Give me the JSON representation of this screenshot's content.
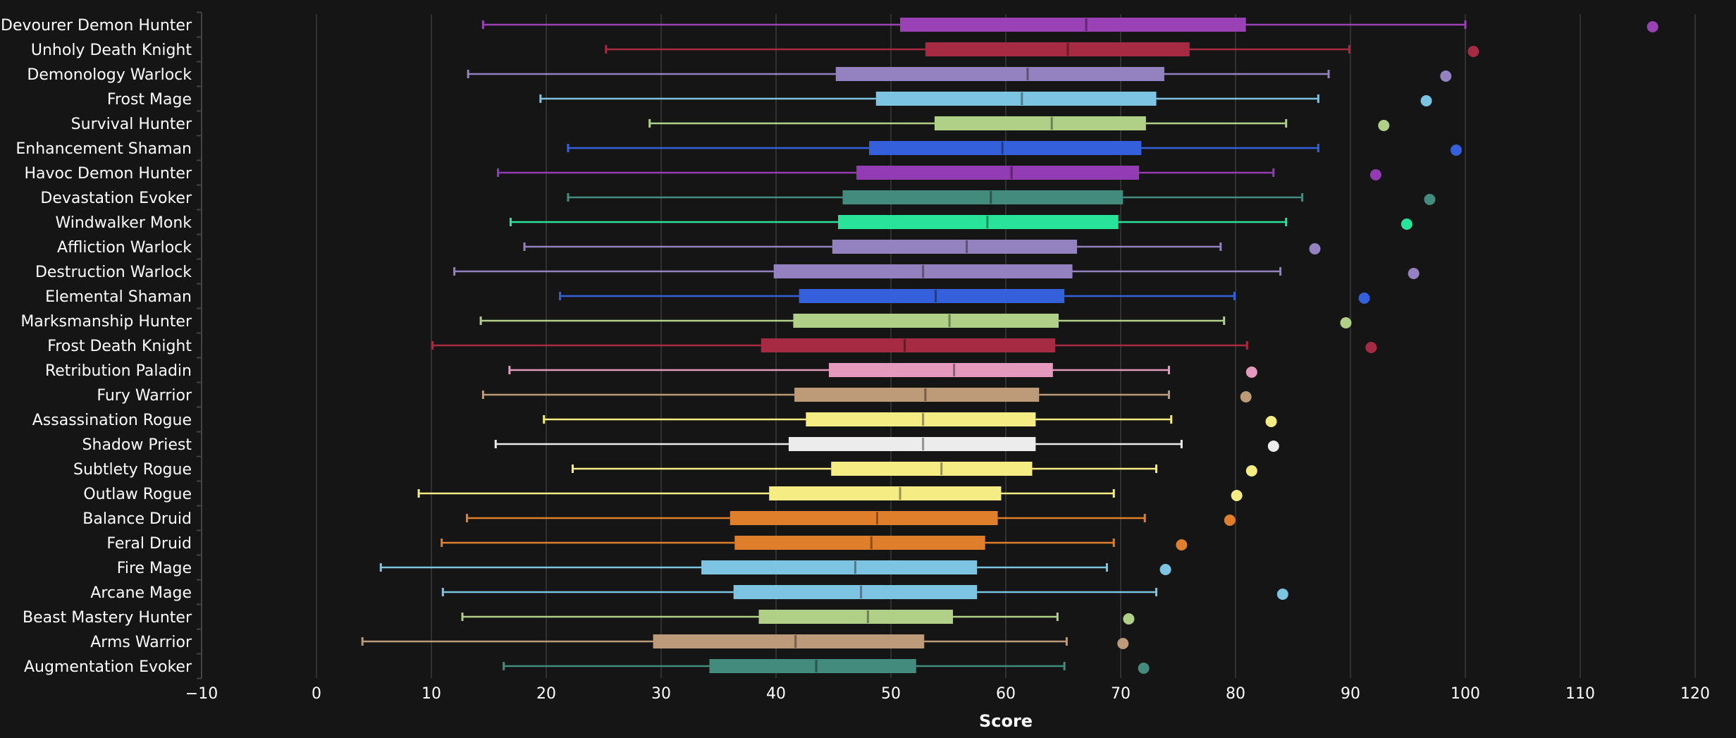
{
  "chart_data": {
    "type": "boxplot",
    "orientation": "horizontal",
    "title": "",
    "xlabel": "Score",
    "ylabel": "",
    "xlim": [
      -10,
      120
    ],
    "xticks": [
      -10,
      0,
      10,
      20,
      30,
      40,
      50,
      60,
      70,
      80,
      90,
      100,
      110,
      120
    ],
    "xtick_labels": [
      "−10",
      "0",
      "10",
      "20",
      "30",
      "40",
      "50",
      "60",
      "70",
      "80",
      "90",
      "100",
      "110",
      "120"
    ],
    "grid": "vertical",
    "legend": "none",
    "background": "#151515",
    "series": [
      {
        "name": "Devourer Demon Hunter",
        "color": "#9b41b6",
        "whisker_low": 14.5,
        "q1": 50.8,
        "median": 67.0,
        "q3": 80.9,
        "whisker_high": 100.0,
        "outlier": 116.3
      },
      {
        "name": "Unholy Death Knight",
        "color": "#a62b42",
        "whisker_low": 25.2,
        "q1": 53.0,
        "median": 65.4,
        "q3": 76.0,
        "whisker_high": 89.9,
        "outlier": 100.7
      },
      {
        "name": "Demonology Warlock",
        "color": "#9482c0",
        "whisker_low": 13.2,
        "q1": 45.2,
        "median": 61.9,
        "q3": 73.8,
        "whisker_high": 88.1,
        "outlier": 98.3
      },
      {
        "name": "Frost Mage",
        "color": "#7cc4e2",
        "whisker_low": 19.5,
        "q1": 48.7,
        "median": 61.4,
        "q3": 73.1,
        "whisker_high": 87.2,
        "outlier": 96.6
      },
      {
        "name": "Survival Hunter",
        "color": "#afd086",
        "whisker_low": 29.0,
        "q1": 53.8,
        "median": 64.0,
        "q3": 72.2,
        "whisker_high": 84.4,
        "outlier": 92.9
      },
      {
        "name": "Enhancement Shaman",
        "color": "#3460dc",
        "whisker_low": 21.9,
        "q1": 48.1,
        "median": 59.7,
        "q3": 71.8,
        "whisker_high": 87.2,
        "outlier": 99.2
      },
      {
        "name": "Havoc Demon Hunter",
        "color": "#933bb2",
        "whisker_low": 15.8,
        "q1": 47.0,
        "median": 60.5,
        "q3": 71.6,
        "whisker_high": 83.3,
        "outlier": 92.2
      },
      {
        "name": "Devastation Evoker",
        "color": "#438b7c",
        "whisker_low": 21.9,
        "q1": 45.8,
        "median": 58.7,
        "q3": 70.2,
        "whisker_high": 85.8,
        "outlier": 96.9
      },
      {
        "name": "Windwalker Monk",
        "color": "#2ae39a",
        "whisker_low": 16.9,
        "q1": 45.4,
        "median": 58.4,
        "q3": 69.8,
        "whisker_high": 84.4,
        "outlier": 94.9
      },
      {
        "name": "Affliction Warlock",
        "color": "#9482c0",
        "whisker_low": 18.1,
        "q1": 44.9,
        "median": 56.6,
        "q3": 66.2,
        "whisker_high": 78.7,
        "outlier": 86.9
      },
      {
        "name": "Destruction Warlock",
        "color": "#9482c0",
        "whisker_low": 12.0,
        "q1": 39.8,
        "median": 52.8,
        "q3": 65.8,
        "whisker_high": 83.9,
        "outlier": 95.5
      },
      {
        "name": "Elemental Shaman",
        "color": "#3460dc",
        "whisker_low": 21.2,
        "q1": 42.0,
        "median": 53.9,
        "q3": 65.1,
        "whisker_high": 79.9,
        "outlier": 91.2
      },
      {
        "name": "Marksmanship Hunter",
        "color": "#afd086",
        "whisker_low": 14.3,
        "q1": 41.5,
        "median": 55.1,
        "q3": 64.6,
        "whisker_high": 79.0,
        "outlier": 89.6
      },
      {
        "name": "Frost Death Knight",
        "color": "#a62b42",
        "whisker_low": 10.1,
        "q1": 38.7,
        "median": 51.2,
        "q3": 64.3,
        "whisker_high": 81.0,
        "outlier": 91.8
      },
      {
        "name": "Retribution Paladin",
        "color": "#e59abd",
        "whisker_low": 16.8,
        "q1": 44.6,
        "median": 55.5,
        "q3": 64.1,
        "whisker_high": 74.2,
        "outlier": 81.4
      },
      {
        "name": "Fury Warrior",
        "color": "#bd9a78",
        "whisker_low": 14.5,
        "q1": 41.6,
        "median": 53.0,
        "q3": 62.9,
        "whisker_high": 74.2,
        "outlier": 80.9
      },
      {
        "name": "Assassination Rogue",
        "color": "#f5ec84",
        "whisker_low": 19.8,
        "q1": 42.6,
        "median": 52.8,
        "q3": 62.6,
        "whisker_high": 74.4,
        "outlier": 83.1
      },
      {
        "name": "Shadow Priest",
        "color": "#ececec",
        "whisker_low": 15.6,
        "q1": 41.1,
        "median": 52.8,
        "q3": 62.6,
        "whisker_high": 75.3,
        "outlier": 83.3
      },
      {
        "name": "Subtlety Rogue",
        "color": "#f5ec84",
        "whisker_low": 22.3,
        "q1": 44.8,
        "median": 54.4,
        "q3": 62.3,
        "whisker_high": 73.1,
        "outlier": 81.4
      },
      {
        "name": "Outlaw Rogue",
        "color": "#f5ec84",
        "whisker_low": 8.9,
        "q1": 39.4,
        "median": 50.8,
        "q3": 59.6,
        "whisker_high": 69.4,
        "outlier": 80.1
      },
      {
        "name": "Balance Druid",
        "color": "#e07f2b",
        "whisker_low": 13.1,
        "q1": 36.0,
        "median": 48.8,
        "q3": 59.3,
        "whisker_high": 72.1,
        "outlier": 79.5
      },
      {
        "name": "Feral Druid",
        "color": "#e07f2b",
        "whisker_low": 10.9,
        "q1": 36.4,
        "median": 48.3,
        "q3": 58.2,
        "whisker_high": 69.4,
        "outlier": 75.3
      },
      {
        "name": "Fire Mage",
        "color": "#7cc4e2",
        "whisker_low": 5.6,
        "q1": 33.5,
        "median": 46.9,
        "q3": 57.5,
        "whisker_high": 68.8,
        "outlier": 73.9
      },
      {
        "name": "Arcane Mage",
        "color": "#7cc4e2",
        "whisker_low": 11.0,
        "q1": 36.3,
        "median": 47.4,
        "q3": 57.5,
        "whisker_high": 73.1,
        "outlier": 84.1
      },
      {
        "name": "Beast Mastery Hunter",
        "color": "#afd086",
        "whisker_low": 12.7,
        "q1": 38.5,
        "median": 48.0,
        "q3": 55.4,
        "whisker_high": 64.5,
        "outlier": 70.7
      },
      {
        "name": "Arms Warrior",
        "color": "#bc9a7a",
        "whisker_low": 4.0,
        "q1": 29.3,
        "median": 41.7,
        "q3": 52.9,
        "whisker_high": 65.3,
        "outlier": 70.2
      },
      {
        "name": "Augmentation Evoker",
        "color": "#438b7c",
        "whisker_low": 16.3,
        "q1": 34.2,
        "median": 43.5,
        "q3": 52.2,
        "whisker_high": 65.1,
        "outlier": 72.0
      }
    ]
  }
}
